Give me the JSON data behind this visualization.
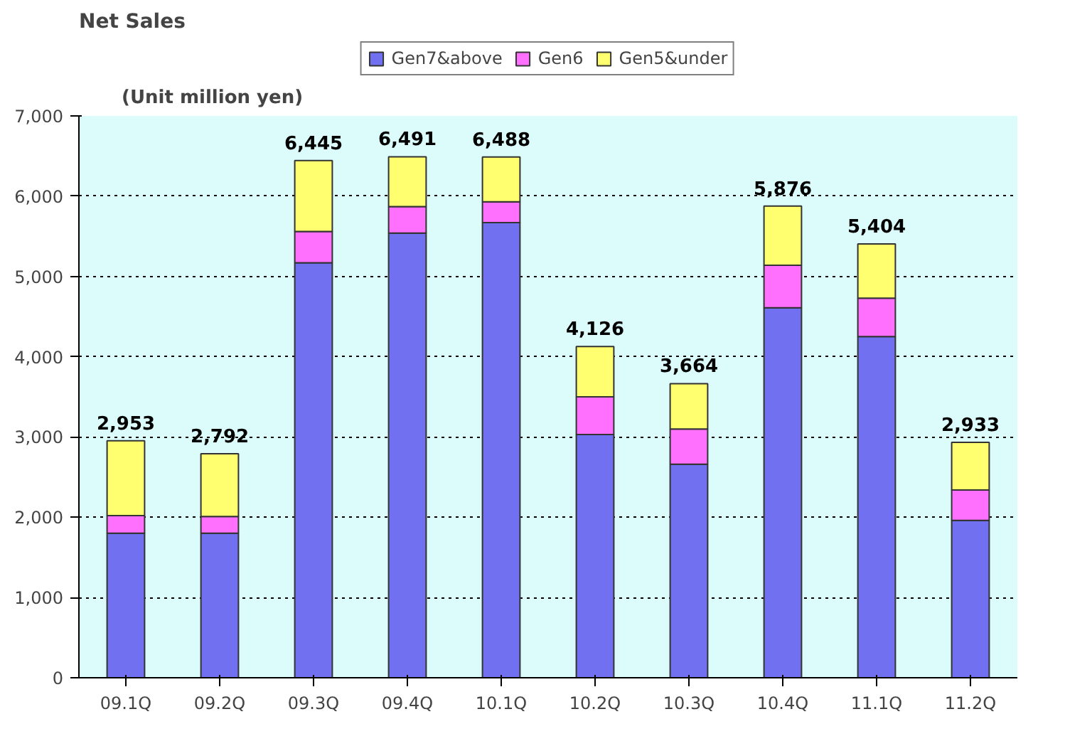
{
  "chart_data": {
    "type": "bar",
    "title": "Net Sales",
    "annotations": [
      "(Unit million yen)"
    ],
    "categories": [
      "09.1Q",
      "09.2Q",
      "09.3Q",
      "09.4Q",
      "10.1Q",
      "10.2Q",
      "10.3Q",
      "10.4Q",
      "11.1Q",
      "11.2Q"
    ],
    "stacked": true,
    "series": [
      {
        "name": "Gen7&above",
        "color": "#7070f0",
        "values": [
          1800,
          1800,
          5170,
          5540,
          5670,
          3030,
          2660,
          4610,
          4250,
          1960
        ]
      },
      {
        "name": "Gen6",
        "color": "#ff70ff",
        "values": [
          220,
          210,
          390,
          330,
          260,
          470,
          440,
          530,
          480,
          380
        ]
      },
      {
        "name": "Gen5&under",
        "color": "#ffff70",
        "values": [
          933,
          782,
          885,
          621,
          558,
          626,
          564,
          736,
          674,
          593
        ]
      }
    ],
    "totals": [
      "2,953",
      "2,792",
      "6,445",
      "6,491",
      "6,488",
      "4,126",
      "3,664",
      "5,876",
      "5,404",
      "2,933"
    ],
    "ylim": [
      0,
      7000
    ],
    "yticks": [
      {
        "value": 0,
        "label": "0"
      },
      {
        "value": 1000,
        "label": "1,000"
      },
      {
        "value": 2000,
        "label": "2,000"
      },
      {
        "value": 3000,
        "label": "3,000"
      },
      {
        "value": 4000,
        "label": "4,000"
      },
      {
        "value": 5000,
        "label": "5,000"
      },
      {
        "value": 6000,
        "label": "6,000"
      },
      {
        "value": 7000,
        "label": "7,000"
      }
    ],
    "grid": "y",
    "legend": "top"
  }
}
